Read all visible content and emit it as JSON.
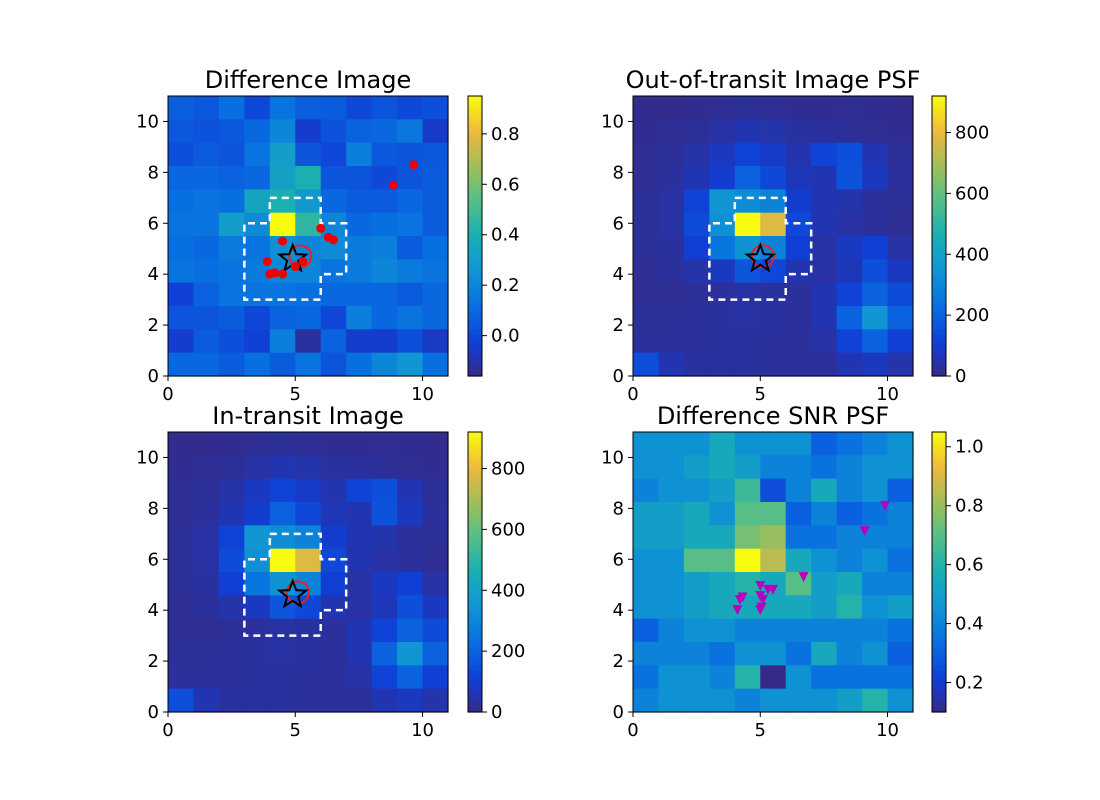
{
  "chart_data": [
    {
      "type": "heatmap",
      "title": "Difference Image",
      "xlim": [
        0,
        11
      ],
      "ylim": [
        0,
        11
      ],
      "xticks": [
        0,
        5,
        10
      ],
      "yticks": [
        0,
        2,
        4,
        6,
        8,
        10
      ],
      "colorbar": {
        "min": -0.16,
        "max": 0.95,
        "ticks": [
          0.0,
          0.2,
          0.4,
          0.6,
          0.8
        ],
        "tick_labels": [
          "0.0",
          "0.2",
          "0.4",
          "0.6",
          "0.8"
        ]
      },
      "z": [
        [
          0.07,
          0.05,
          0.12,
          0.0,
          0.14,
          0.07,
          0.06,
          0.0,
          0.04,
          0.0,
          0.02
        ],
        [
          0.05,
          0.03,
          0.05,
          0.1,
          0.2,
          -0.04,
          0.03,
          0.08,
          0.1,
          0.15,
          -0.05
        ],
        [
          0.02,
          0.06,
          0.04,
          0.14,
          0.3,
          0.04,
          0.0,
          0.18,
          0.05,
          0.04,
          0.05
        ],
        [
          0.1,
          0.1,
          0.08,
          0.1,
          0.32,
          0.4,
          0.04,
          0.04,
          0.0,
          0.04,
          0.06
        ],
        [
          0.12,
          0.14,
          0.12,
          0.34,
          0.4,
          0.28,
          0.1,
          0.06,
          0.06,
          0.1,
          0.06
        ],
        [
          0.14,
          0.14,
          0.3,
          0.22,
          0.95,
          0.45,
          0.2,
          0.1,
          0.12,
          0.14,
          0.06
        ],
        [
          0.12,
          0.1,
          0.16,
          0.14,
          0.24,
          0.2,
          0.22,
          0.16,
          0.18,
          0.06,
          0.12
        ],
        [
          0.14,
          0.12,
          0.14,
          0.16,
          0.2,
          0.2,
          0.14,
          0.16,
          0.2,
          0.16,
          0.14
        ],
        [
          -0.02,
          0.08,
          0.14,
          0.14,
          0.14,
          0.12,
          0.1,
          0.1,
          0.1,
          0.06,
          0.1
        ],
        [
          0.04,
          0.04,
          0.06,
          0.0,
          0.08,
          0.1,
          0.0,
          0.18,
          0.1,
          0.14,
          0.1
        ],
        [
          -0.04,
          0.06,
          0.02,
          -0.02,
          0.18,
          -0.12,
          0.08,
          -0.04,
          -0.04,
          0.02,
          -0.06
        ],
        [
          0.1,
          0.1,
          0.06,
          0.12,
          0.06,
          0.14,
          0.04,
          0.12,
          0.2,
          0.26,
          0.12
        ]
      ],
      "aperture": [
        [
          4,
          7
        ],
        [
          6,
          7
        ],
        [
          6,
          6
        ],
        [
          7,
          6
        ],
        [
          7,
          4
        ],
        [
          6,
          4
        ],
        [
          6,
          3
        ],
        [
          3,
          3
        ],
        [
          3,
          6
        ],
        [
          4,
          6
        ],
        [
          4,
          7
        ]
      ],
      "star": [
        4.9,
        4.6
      ],
      "circle": [
        5.2,
        4.7
      ],
      "markers": {
        "shape": "circle",
        "color": "#ee0000",
        "points": [
          [
            3.9,
            4.5
          ],
          [
            4.0,
            4.0
          ],
          [
            4.2,
            4.05
          ],
          [
            4.5,
            4.0
          ],
          [
            4.5,
            5.3
          ],
          [
            5.0,
            4.3
          ],
          [
            5.3,
            4.5
          ],
          [
            6.0,
            5.8
          ],
          [
            6.3,
            5.45
          ],
          [
            6.5,
            5.35
          ],
          [
            8.85,
            7.5
          ],
          [
            9.65,
            8.3
          ]
        ]
      }
    },
    {
      "type": "heatmap",
      "title": "Out-of-transit Image PSF",
      "xlim": [
        0,
        11
      ],
      "ylim": [
        0,
        11
      ],
      "xticks": [
        0,
        5,
        10
      ],
      "yticks": [
        0,
        2,
        4,
        6,
        8,
        10
      ],
      "colorbar": {
        "min": 0,
        "max": 920,
        "ticks": [
          0,
          200,
          400,
          600,
          800
        ],
        "tick_labels": [
          "0",
          "200",
          "400",
          "600",
          "800"
        ]
      },
      "z": [
        [
          10,
          10,
          15,
          20,
          25,
          20,
          15,
          15,
          20,
          15,
          10
        ],
        [
          15,
          20,
          25,
          40,
          60,
          50,
          35,
          30,
          25,
          20,
          15
        ],
        [
          20,
          25,
          45,
          80,
          120,
          90,
          55,
          120,
          150,
          60,
          25
        ],
        [
          20,
          30,
          60,
          100,
          200,
          130,
          70,
          60,
          160,
          80,
          30
        ],
        [
          25,
          40,
          120,
          350,
          320,
          290,
          100,
          60,
          50,
          30,
          25
        ],
        [
          25,
          40,
          140,
          330,
          920,
          780,
          130,
          60,
          40,
          30,
          20
        ],
        [
          25,
          35,
          110,
          250,
          340,
          290,
          110,
          40,
          80,
          110,
          40
        ],
        [
          20,
          30,
          50,
          80,
          170,
          130,
          60,
          40,
          70,
          150,
          80
        ],
        [
          20,
          20,
          25,
          30,
          40,
          35,
          30,
          60,
          120,
          200,
          140
        ],
        [
          25,
          25,
          30,
          35,
          40,
          35,
          30,
          60,
          200,
          350,
          200
        ],
        [
          30,
          30,
          30,
          35,
          35,
          30,
          30,
          40,
          120,
          200,
          110
        ],
        [
          150,
          60,
          35,
          35,
          35,
          30,
          30,
          30,
          60,
          80,
          50
        ]
      ],
      "aperture": [
        [
          4,
          7
        ],
        [
          6,
          7
        ],
        [
          6,
          6
        ],
        [
          7,
          6
        ],
        [
          7,
          4
        ],
        [
          6,
          4
        ],
        [
          6,
          3
        ],
        [
          3,
          3
        ],
        [
          3,
          6
        ],
        [
          4,
          6
        ],
        [
          4,
          7
        ]
      ],
      "star": [
        5.0,
        4.6
      ],
      "circle": [
        5.1,
        4.7
      ]
    },
    {
      "type": "heatmap",
      "title": "In-transit Image",
      "xlim": [
        0,
        11
      ],
      "ylim": [
        0,
        11
      ],
      "xticks": [
        0,
        5,
        10
      ],
      "yticks": [
        0,
        2,
        4,
        6,
        8,
        10
      ],
      "colorbar": {
        "min": 0,
        "max": 920,
        "ticks": [
          0,
          200,
          400,
          600,
          800
        ],
        "tick_labels": [
          "0",
          "200",
          "400",
          "600",
          "800"
        ]
      },
      "z": [
        [
          10,
          10,
          15,
          20,
          25,
          20,
          15,
          15,
          20,
          15,
          10
        ],
        [
          15,
          20,
          25,
          40,
          60,
          50,
          35,
          30,
          25,
          20,
          15
        ],
        [
          20,
          25,
          45,
          80,
          120,
          90,
          55,
          120,
          150,
          60,
          25
        ],
        [
          20,
          30,
          60,
          100,
          200,
          130,
          70,
          60,
          160,
          80,
          30
        ],
        [
          25,
          40,
          120,
          350,
          320,
          290,
          100,
          60,
          50,
          30,
          25
        ],
        [
          25,
          40,
          140,
          330,
          920,
          780,
          130,
          60,
          40,
          30,
          20
        ],
        [
          25,
          35,
          110,
          250,
          340,
          290,
          110,
          40,
          80,
          110,
          40
        ],
        [
          20,
          30,
          50,
          80,
          170,
          130,
          60,
          40,
          70,
          150,
          80
        ],
        [
          20,
          20,
          25,
          30,
          40,
          35,
          30,
          60,
          120,
          200,
          140
        ],
        [
          25,
          25,
          30,
          35,
          40,
          35,
          30,
          60,
          200,
          350,
          200
        ],
        [
          30,
          30,
          30,
          35,
          35,
          30,
          30,
          40,
          120,
          200,
          110
        ],
        [
          150,
          60,
          35,
          35,
          35,
          30,
          30,
          30,
          60,
          80,
          50
        ]
      ],
      "aperture": [
        [
          4,
          7
        ],
        [
          6,
          7
        ],
        [
          6,
          6
        ],
        [
          7,
          6
        ],
        [
          7,
          4
        ],
        [
          6,
          4
        ],
        [
          6,
          3
        ],
        [
          3,
          3
        ],
        [
          3,
          6
        ],
        [
          4,
          6
        ],
        [
          4,
          7
        ]
      ],
      "star": [
        4.9,
        4.6
      ],
      "circle": [
        5.1,
        4.7
      ]
    },
    {
      "type": "heatmap",
      "title": "Difference SNR PSF",
      "xlim": [
        0,
        11
      ],
      "ylim": [
        0,
        11
      ],
      "xticks": [
        0,
        5,
        10
      ],
      "yticks": [
        0,
        2,
        4,
        6,
        8,
        10
      ],
      "colorbar": {
        "min": 0.1,
        "max": 1.05,
        "ticks": [
          0.2,
          0.4,
          0.6,
          0.8,
          1.0
        ],
        "tick_labels": [
          "0.2",
          "0.4",
          "0.6",
          "0.8",
          "1.0"
        ]
      },
      "z": [
        [
          0.45,
          0.45,
          0.45,
          0.55,
          0.45,
          0.45,
          0.45,
          0.3,
          0.35,
          0.4,
          0.45
        ],
        [
          0.45,
          0.45,
          0.5,
          0.55,
          0.5,
          0.4,
          0.4,
          0.35,
          0.4,
          0.45,
          0.45
        ],
        [
          0.4,
          0.45,
          0.45,
          0.5,
          0.65,
          0.25,
          0.4,
          0.55,
          0.4,
          0.45,
          0.3
        ],
        [
          0.5,
          0.5,
          0.55,
          0.45,
          0.7,
          0.7,
          0.3,
          0.4,
          0.3,
          0.35,
          0.4
        ],
        [
          0.5,
          0.5,
          0.55,
          0.55,
          0.75,
          0.8,
          0.35,
          0.35,
          0.4,
          0.4,
          0.4
        ],
        [
          0.45,
          0.45,
          0.7,
          0.7,
          1.05,
          0.85,
          0.55,
          0.45,
          0.4,
          0.45,
          0.35
        ],
        [
          0.45,
          0.45,
          0.5,
          0.55,
          0.6,
          0.55,
          0.7,
          0.5,
          0.55,
          0.4,
          0.4
        ],
        [
          0.45,
          0.45,
          0.5,
          0.55,
          0.55,
          0.55,
          0.55,
          0.5,
          0.6,
          0.45,
          0.5
        ],
        [
          0.3,
          0.4,
          0.45,
          0.45,
          0.4,
          0.4,
          0.4,
          0.4,
          0.4,
          0.4,
          0.35
        ],
        [
          0.4,
          0.4,
          0.4,
          0.35,
          0.45,
          0.45,
          0.35,
          0.55,
          0.4,
          0.45,
          0.3
        ],
        [
          0.35,
          0.45,
          0.45,
          0.4,
          0.6,
          0.1,
          0.45,
          0.35,
          0.35,
          0.35,
          0.35
        ],
        [
          0.4,
          0.45,
          0.45,
          0.45,
          0.4,
          0.45,
          0.45,
          0.45,
          0.5,
          0.6,
          0.45
        ]
      ],
      "markers": {
        "shape": "triangle-down",
        "color": "#bb00bb",
        "points": [
          [
            4.1,
            4.0
          ],
          [
            4.2,
            4.4
          ],
          [
            4.3,
            4.5
          ],
          [
            5.0,
            4.95
          ],
          [
            5.0,
            4.0
          ],
          [
            5.05,
            4.1
          ],
          [
            5.0,
            4.55
          ],
          [
            5.1,
            4.4
          ],
          [
            5.3,
            4.8
          ],
          [
            5.5,
            4.8
          ],
          [
            6.7,
            5.3
          ],
          [
            9.1,
            7.1
          ],
          [
            9.9,
            8.1
          ]
        ]
      }
    }
  ]
}
